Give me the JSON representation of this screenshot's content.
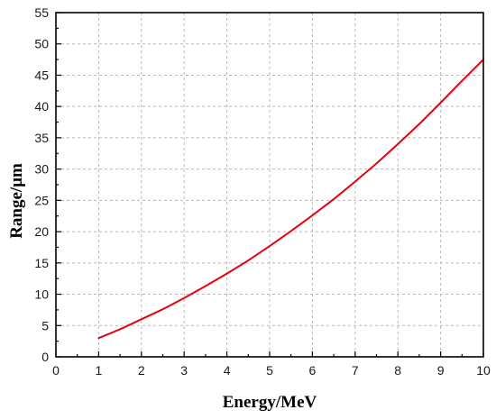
{
  "colors": {
    "line": "#e8000b",
    "grid": "#b8b8b8",
    "axis": "#000000",
    "background": "#ffffff"
  },
  "chart_data": {
    "type": "line",
    "title": "",
    "xlabel": "Energy/MeV",
    "ylabel": "Range/μm",
    "xlim": [
      0,
      10
    ],
    "ylim": [
      0,
      55
    ],
    "xticks": [
      0,
      1,
      2,
      3,
      4,
      5,
      6,
      7,
      8,
      9,
      10
    ],
    "yticks": [
      0,
      5,
      10,
      15,
      20,
      25,
      30,
      35,
      40,
      45,
      50,
      55
    ],
    "grid": "on (dashed)",
    "legend": "none",
    "series": [
      {
        "x": [
          1,
          1.5,
          2,
          2.5,
          3,
          3.5,
          4,
          4.5,
          5,
          5.5,
          6,
          6.5,
          7,
          7.5,
          8,
          8.5,
          9,
          9.5,
          10
        ],
        "y": [
          3.0,
          4.4,
          6.0,
          7.6,
          9.4,
          11.3,
          13.3,
          15.4,
          17.7,
          20.1,
          22.6,
          25.2,
          28.0,
          30.9,
          34.0,
          37.2,
          40.6,
          44.1,
          47.5
        ]
      }
    ]
  }
}
